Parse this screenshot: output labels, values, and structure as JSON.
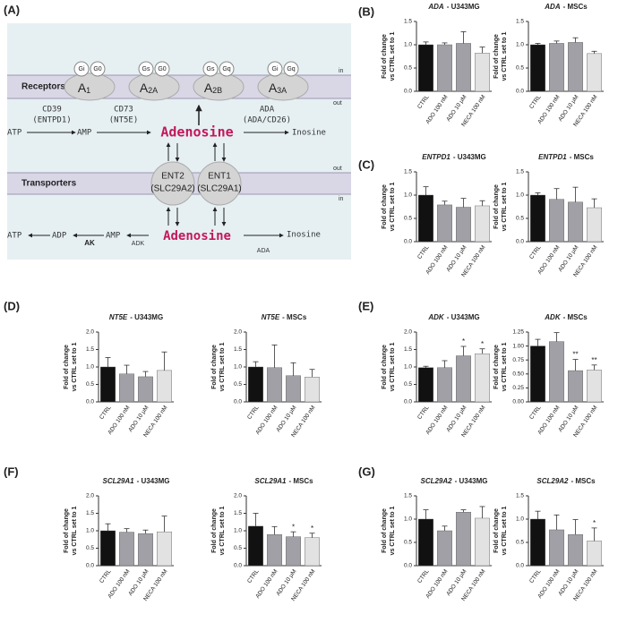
{
  "panels": [
    "(A)",
    "(B)",
    "(C)",
    "(D)",
    "(E)",
    "(F)",
    "(G)"
  ],
  "diagram": {
    "membrane_top": [
      "in",
      "out"
    ],
    "membrane_bottom": [
      "out",
      "in"
    ],
    "receptors_label": "Receptors",
    "transporters_label": "Transporters",
    "receptors": [
      {
        "name": "A",
        "sub": "1",
        "g": [
          "Gi",
          "G0"
        ]
      },
      {
        "name": "A",
        "sub": "2A",
        "g": [
          "Gs",
          "G0"
        ]
      },
      {
        "name": "A",
        "sub": "2B",
        "g": [
          "Gs",
          "Gq"
        ]
      },
      {
        "name": "A",
        "sub": "3A",
        "g": [
          "Gi",
          "Gq"
        ]
      }
    ],
    "extracellular": {
      "atp": "ATP",
      "cd39": "CD39",
      "entpd1": "(ENTPD1)",
      "amp": "AMP",
      "cd73": "CD73",
      "nt5e": "(NT5E)",
      "adenosine": "Adenosine",
      "ada": "ADA",
      "ada_cd26": "(ADA/CD26)",
      "inosine": "Inosine"
    },
    "transporters": [
      {
        "name": "ENT2",
        "gene": "(SLC29A2)"
      },
      {
        "name": "ENT1",
        "gene": "(SLC29A1)"
      }
    ],
    "intracellular": {
      "atp": "ATP",
      "adp": "ADP",
      "ak": "AK",
      "amp": "AMP",
      "adk": "ADK",
      "adenosine": "Adenosine",
      "ada": "ADA",
      "inosine": "Inosine"
    }
  },
  "chart_data": [
    {
      "type": "bar",
      "title": {
        "gene": "ADA",
        "rest": "- U343MG"
      },
      "ylabel": [
        "Fold of change",
        "vs CTRL set to 1"
      ],
      "categories": [
        "CTRL",
        "ADO 100 nM",
        "ADO 10 μM",
        "NECA 100 nM"
      ],
      "values": [
        1.0,
        1.0,
        1.03,
        0.82
      ],
      "errors": [
        0.06,
        0.04,
        0.25,
        0.13
      ],
      "colors": [
        "#111111",
        "#a0a0a6",
        "#a0a0a6",
        "#e2e2e2"
      ],
      "ylim": [
        0,
        1.5
      ],
      "yticks": [
        {
          "value": 0,
          "label": "0.0"
        },
        0.5,
        {
          "value": 1,
          "label": "1.0"
        },
        1.5
      ]
    },
    {
      "type": "bar",
      "title": {
        "gene": "ADA",
        "rest": "- MSCs"
      },
      "ylabel": [
        "Fold of change",
        "vs CTRL set to 1"
      ],
      "categories": [
        "CTRL",
        "ADO 100 nM",
        "ADO 10 μM",
        "NECA 100 nM"
      ],
      "values": [
        1.0,
        1.03,
        1.05,
        0.81
      ],
      "errors": [
        0.03,
        0.05,
        0.1,
        0.05
      ],
      "colors": [
        "#111111",
        "#a0a0a6",
        "#a0a0a6",
        "#e2e2e2"
      ],
      "ylim": [
        0,
        1.5
      ],
      "yticks": [
        {
          "value": 0,
          "label": "0.0"
        },
        0.5,
        {
          "value": 1,
          "label": "1.0"
        },
        1.5
      ]
    },
    {
      "type": "bar",
      "title": {
        "gene": "ENTPD1",
        "rest": "- U343MG"
      },
      "ylabel": [
        "Fold of change",
        "vs CTRL set to 1"
      ],
      "categories": [
        "CTRL",
        "ADO 100 nM",
        "ADO 10 μM",
        "NECA 100 nM"
      ],
      "values": [
        1.0,
        0.79,
        0.74,
        0.77
      ],
      "errors": [
        0.18,
        0.08,
        0.19,
        0.11
      ],
      "colors": [
        "#111111",
        "#a0a0a6",
        "#a0a0a6",
        "#e2e2e2"
      ],
      "ylim": [
        0,
        1.5
      ],
      "yticks": [
        {
          "value": 0,
          "label": "0.0"
        },
        0.5,
        {
          "value": 1,
          "label": "1.0"
        },
        1.5
      ]
    },
    {
      "type": "bar",
      "title": {
        "gene": "ENTPD1",
        "rest": "- MSCs"
      },
      "ylabel": [
        "Fold of change",
        "vs CTRL set to 1"
      ],
      "categories": [
        "CTRL",
        "ADO 100 nM",
        "ADO 10 μM",
        "NECA 100 nM"
      ],
      "values": [
        1.0,
        0.91,
        0.85,
        0.73
      ],
      "errors": [
        0.05,
        0.23,
        0.32,
        0.19
      ],
      "colors": [
        "#111111",
        "#a0a0a6",
        "#a0a0a6",
        "#e2e2e2"
      ],
      "ylim": [
        0,
        1.5
      ],
      "yticks": [
        {
          "value": 0,
          "label": "0.0"
        },
        0.5,
        {
          "value": 1,
          "label": "1.0"
        },
        1.5
      ]
    },
    {
      "type": "bar",
      "title": {
        "gene": "NT5E",
        "rest": "- U343MG"
      },
      "ylabel": [
        "Fold of change",
        "vs CTRL set to 1"
      ],
      "categories": [
        "CTRL",
        "ADO 100 nM",
        "ADO 10 μM",
        "NECA 100 nM"
      ],
      "values": [
        1.0,
        0.8,
        0.72,
        0.9
      ],
      "errors": [
        0.27,
        0.25,
        0.15,
        0.53
      ],
      "colors": [
        "#111111",
        "#a0a0a6",
        "#a0a0a6",
        "#e2e2e2"
      ],
      "ylim": [
        0,
        2
      ],
      "yticks": [
        {
          "value": 0,
          "label": "0.0"
        },
        0.5,
        {
          "value": 1,
          "label": "1.0"
        },
        1.5,
        {
          "value": 2,
          "label": "2.0"
        }
      ]
    },
    {
      "type": "bar",
      "title": {
        "gene": "NT5E",
        "rest": "- MSCs"
      },
      "ylabel": [
        "Fold of change",
        "vs CTRL set to 1"
      ],
      "categories": [
        "CTRL",
        "ADO 100 nM",
        "ADO 10 μM",
        "NECA 100 nM"
      ],
      "values": [
        1.0,
        0.98,
        0.75,
        0.71
      ],
      "errors": [
        0.15,
        0.65,
        0.37,
        0.22
      ],
      "colors": [
        "#111111",
        "#a0a0a6",
        "#a0a0a6",
        "#e2e2e2"
      ],
      "ylim": [
        0,
        2
      ],
      "yticks": [
        {
          "value": 0,
          "label": "0.0"
        },
        0.5,
        {
          "value": 1,
          "label": "1.0"
        },
        1.5,
        {
          "value": 2,
          "label": "2.0"
        }
      ]
    },
    {
      "type": "bar",
      "title": {
        "gene": "ADK",
        "rest": "- U343MG"
      },
      "ylabel": [
        "Fold of change",
        "vs CTRL set to 1"
      ],
      "categories": [
        "CTRL",
        "ADO 100 nM",
        "ADO 10 μM",
        "NECA 100 nM"
      ],
      "values": [
        0.98,
        0.98,
        1.32,
        1.38
      ],
      "errors": [
        0.04,
        0.2,
        0.27,
        0.14
      ],
      "annotations": [
        null,
        null,
        "*",
        "*"
      ],
      "colors": [
        "#111111",
        "#a0a0a6",
        "#a0a0a6",
        "#e2e2e2"
      ],
      "ylim": [
        0,
        2
      ],
      "yticks": [
        {
          "value": 0,
          "label": "0.0"
        },
        0.5,
        {
          "value": 1,
          "label": "1.0"
        },
        1.5,
        {
          "value": 2,
          "label": "2.0"
        }
      ]
    },
    {
      "type": "bar",
      "title": {
        "gene": "ADK",
        "rest": "- MSCs"
      },
      "ylabel": [
        "Fold of change",
        "vs CTRL set to 1"
      ],
      "categories": [
        "CTRL",
        "ADO 100 nM",
        "ADO 10 μM",
        "NECA 100 nM"
      ],
      "values": [
        1.0,
        1.08,
        0.56,
        0.57
      ],
      "errors": [
        0.12,
        0.16,
        0.2,
        0.09
      ],
      "annotations": [
        null,
        null,
        "**",
        "**"
      ],
      "colors": [
        "#111111",
        "#a0a0a6",
        "#a0a0a6",
        "#e2e2e2"
      ],
      "ylim": [
        0,
        1.25
      ],
      "yticks": [
        {
          "value": 0,
          "label": "0.00"
        },
        0.25,
        {
          "value": 0.5,
          "label": "0.50"
        },
        0.75,
        {
          "value": 1,
          "label": "1.00"
        },
        1.25
      ]
    },
    {
      "type": "bar",
      "title": {
        "gene": "SCL29A1",
        "rest": "- U343MG"
      },
      "ylabel": [
        "Fold of change",
        "vs CTRL set to 1"
      ],
      "categories": [
        "CTRL",
        "ADO 100 nM",
        "ADO 10 μM",
        "NECA 100 nM"
      ],
      "values": [
        1.0,
        0.96,
        0.92,
        0.97
      ],
      "errors": [
        0.2,
        0.1,
        0.1,
        0.45
      ],
      "colors": [
        "#111111",
        "#a0a0a6",
        "#a0a0a6",
        "#e2e2e2"
      ],
      "ylim": [
        0,
        2
      ],
      "yticks": [
        {
          "value": 0,
          "label": "0.0"
        },
        0.5,
        {
          "value": 1,
          "label": "1.0"
        },
        1.5,
        {
          "value": 2,
          "label": "2.0"
        }
      ]
    },
    {
      "type": "bar",
      "title": {
        "gene": "SCL29A1",
        "rest": "- MSCs"
      },
      "ylabel": [
        "Fold of change",
        "vs CTRL set to 1"
      ],
      "categories": [
        "CTRL",
        "ADO 100 nM",
        "ADO 10 μM",
        "NECA 100 nM"
      ],
      "values": [
        1.13,
        0.89,
        0.83,
        0.8
      ],
      "errors": [
        0.37,
        0.23,
        0.14,
        0.13
      ],
      "annotations": [
        null,
        null,
        "*",
        "*"
      ],
      "colors": [
        "#111111",
        "#a0a0a6",
        "#a0a0a6",
        "#e2e2e2"
      ],
      "ylim": [
        0,
        2
      ],
      "yticks": [
        {
          "value": 0,
          "label": "0.0"
        },
        0.5,
        {
          "value": 1,
          "label": "1.0"
        },
        1.5,
        {
          "value": 2,
          "label": "2.0"
        }
      ]
    },
    {
      "type": "bar",
      "title": {
        "gene": "SCL29A2",
        "rest": "- U343MG"
      },
      "ylabel": [
        "Fold of change",
        "vs CTRL set to 1"
      ],
      "categories": [
        "CTRL",
        "ADO 100 nM",
        "ADO 10 μM",
        "NECA 100 nM"
      ],
      "values": [
        1.0,
        0.75,
        1.15,
        1.02
      ],
      "errors": [
        0.2,
        0.1,
        0.05,
        0.25
      ],
      "colors": [
        "#111111",
        "#a0a0a6",
        "#a0a0a6",
        "#e2e2e2"
      ],
      "ylim": [
        0,
        1.5
      ],
      "yticks": [
        {
          "value": 0,
          "label": "0.0"
        },
        0.5,
        {
          "value": 1,
          "label": "1.0"
        },
        1.5
      ]
    },
    {
      "type": "bar",
      "title": {
        "gene": "SCL29A2",
        "rest": "- MSCs"
      },
      "ylabel": [
        "Fold of change",
        "vs CTRL set to 1"
      ],
      "categories": [
        "CTRL",
        "ADO 100 nM",
        "ADO 10 μM",
        "NECA 100 nM"
      ],
      "values": [
        1.0,
        0.77,
        0.67,
        0.53
      ],
      "errors": [
        0.17,
        0.32,
        0.32,
        0.28
      ],
      "annotations": [
        null,
        null,
        null,
        "*"
      ],
      "colors": [
        "#111111",
        "#a0a0a6",
        "#a0a0a6",
        "#e2e2e2"
      ],
      "ylim": [
        0,
        1.5
      ],
      "yticks": [
        {
          "value": 0,
          "label": "0.0"
        },
        0.5,
        {
          "value": 1,
          "label": "1.0"
        },
        1.5
      ]
    }
  ]
}
